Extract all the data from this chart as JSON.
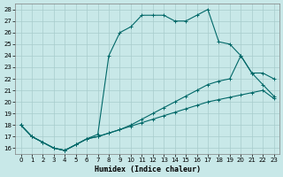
{
  "xlabel": "Humidex (Indice chaleur)",
  "bg_color": "#c8e8e8",
  "grid_color": "#a8cccc",
  "line_color": "#006868",
  "xlim": [
    -0.5,
    23.5
  ],
  "ylim": [
    15.5,
    28.5
  ],
  "yticks": [
    16,
    17,
    18,
    19,
    20,
    21,
    22,
    23,
    24,
    25,
    26,
    27,
    28
  ],
  "xticks": [
    0,
    1,
    2,
    3,
    4,
    5,
    6,
    7,
    8,
    9,
    10,
    11,
    12,
    13,
    14,
    15,
    16,
    17,
    18,
    19,
    20,
    21,
    22,
    23
  ],
  "line1_x": [
    0,
    1,
    2,
    3,
    4,
    5,
    6,
    7,
    8,
    9,
    10,
    11,
    12,
    13,
    14,
    15,
    16,
    17,
    18,
    19,
    20,
    21,
    22,
    23
  ],
  "line1_y": [
    18,
    17,
    16.5,
    16,
    15.8,
    16.3,
    16.8,
    17.0,
    17.3,
    17.6,
    17.9,
    18.2,
    18.5,
    18.8,
    19.1,
    19.4,
    19.7,
    20.0,
    20.2,
    20.4,
    20.6,
    20.8,
    21.0,
    20.3
  ],
  "line2_x": [
    0,
    1,
    2,
    3,
    4,
    5,
    6,
    7,
    8,
    9,
    10,
    11,
    12,
    13,
    14,
    15,
    16,
    17,
    18,
    19,
    20,
    21,
    22,
    23
  ],
  "line2_y": [
    18,
    17,
    16.5,
    16,
    15.8,
    16.3,
    16.8,
    17.0,
    17.3,
    17.6,
    18.0,
    18.5,
    19.0,
    19.5,
    20.0,
    20.5,
    21.0,
    21.5,
    21.8,
    22.0,
    24.0,
    22.5,
    22.5,
    22.0
  ],
  "line3_x": [
    0,
    1,
    2,
    3,
    4,
    5,
    6,
    7,
    8,
    9,
    10,
    11,
    12,
    13,
    14,
    15,
    16,
    17,
    18,
    19,
    20,
    21,
    22,
    23
  ],
  "line3_y": [
    18,
    17,
    16.5,
    16,
    15.8,
    16.3,
    16.8,
    17.2,
    24.0,
    26.0,
    26.5,
    27.5,
    27.5,
    27.5,
    27.0,
    27.0,
    27.5,
    28.0,
    25.2,
    25.0,
    24.0,
    22.5,
    21.5,
    20.5
  ]
}
